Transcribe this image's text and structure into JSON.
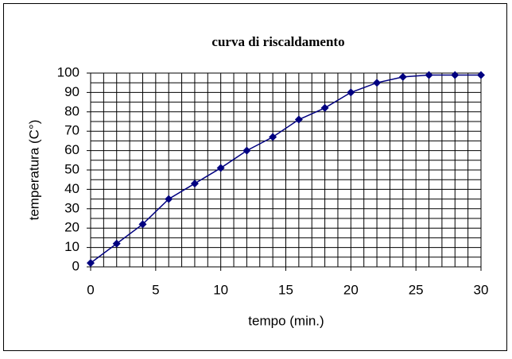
{
  "chart_data": {
    "type": "line",
    "title": "curva di riscaldamento",
    "x_label": "tempo (min.)",
    "y_label": "temperatura (C°)",
    "series": [
      {
        "name": "temperatura",
        "color": "#000080",
        "x": [
          0,
          2,
          4,
          6,
          8,
          10,
          12,
          14,
          16,
          18,
          20,
          22,
          24,
          26,
          28,
          30
        ],
        "values": [
          2,
          12,
          22,
          35,
          43,
          51,
          60,
          67,
          76,
          82,
          90,
          95,
          98,
          99,
          99,
          99
        ]
      }
    ],
    "xlim": [
      0,
      30
    ],
    "xticks": [
      0,
      5,
      10,
      15,
      20,
      25,
      30
    ],
    "ylim": [
      0,
      100
    ],
    "yticks": [
      0,
      10,
      20,
      30,
      40,
      50,
      60,
      70,
      80,
      90,
      100
    ],
    "grid": true,
    "xgrid_step": 1,
    "ygrid_step": 5
  }
}
